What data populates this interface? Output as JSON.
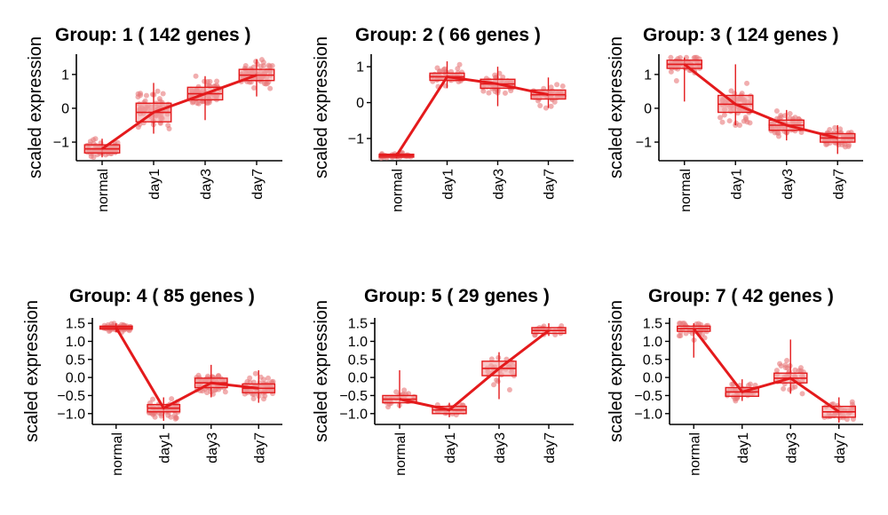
{
  "chart_data": [
    {
      "type": "box",
      "title": "Group: 1 ( 142  genes )",
      "ylabel": "scaled expression",
      "categories": [
        "normal",
        "day1",
        "day3",
        "day7"
      ],
      "ylim": [
        -1.55,
        1.6
      ],
      "yticks": [
        -1,
        0,
        1
      ],
      "ytick_labels": [
        "−1",
        "0",
        "1"
      ],
      "means": [
        -1.2,
        -0.12,
        0.43,
        0.98
      ],
      "boxes": [
        {
          "q1": -1.32,
          "median": -1.2,
          "q3": -1.08,
          "lo": -1.45,
          "hi": -0.9
        },
        {
          "q1": -0.4,
          "median": -0.12,
          "q3": 0.15,
          "lo": -0.75,
          "hi": 0.75
        },
        {
          "q1": 0.25,
          "median": 0.43,
          "q3": 0.62,
          "lo": -0.35,
          "hi": 0.95
        },
        {
          "q1": 0.82,
          "median": 0.98,
          "q3": 1.15,
          "lo": 0.35,
          "hi": 1.45
        }
      ],
      "jitter_spread": [
        0.12,
        0.3,
        0.2,
        0.16
      ],
      "points_per_category": 70
    },
    {
      "type": "box",
      "title": "Group: 2 ( 66  genes )",
      "ylabel": "scaled expression",
      "categories": [
        "normal",
        "day1",
        "day3",
        "day7"
      ],
      "ylim": [
        -1.62,
        1.35
      ],
      "yticks": [
        -1,
        0,
        1
      ],
      "ytick_labels": [
        "−1",
        "0",
        "1"
      ],
      "means": [
        -1.48,
        0.72,
        0.52,
        0.22
      ],
      "boxes": [
        {
          "q1": -1.52,
          "median": -1.48,
          "q3": -1.44,
          "lo": -1.55,
          "hi": -1.4
        },
        {
          "q1": 0.62,
          "median": 0.72,
          "q3": 0.82,
          "lo": 0.4,
          "hi": 1.15
        },
        {
          "q1": 0.4,
          "median": 0.52,
          "q3": 0.65,
          "lo": -0.1,
          "hi": 1.0
        },
        {
          "q1": 0.1,
          "median": 0.22,
          "q3": 0.35,
          "lo": -0.15,
          "hi": 0.7
        }
      ],
      "jitter_spread": [
        0.03,
        0.12,
        0.15,
        0.14
      ],
      "points_per_category": 45
    },
    {
      "type": "box",
      "title": "Group: 3 ( 124  genes )",
      "ylabel": "scaled expression",
      "categories": [
        "normal",
        "day1",
        "day3",
        "day7"
      ],
      "ylim": [
        -1.55,
        1.6
      ],
      "yticks": [
        -1,
        0,
        1
      ],
      "ytick_labels": [
        "−1",
        "0",
        "1"
      ],
      "means": [
        1.3,
        0.12,
        -0.5,
        -0.88
      ],
      "boxes": [
        {
          "q1": 1.18,
          "median": 1.3,
          "q3": 1.42,
          "lo": 0.2,
          "hi": 1.5
        },
        {
          "q1": -0.12,
          "median": 0.12,
          "q3": 0.38,
          "lo": -0.5,
          "hi": 1.3
        },
        {
          "q1": -0.65,
          "median": -0.5,
          "q3": -0.35,
          "lo": -0.95,
          "hi": -0.05
        },
        {
          "q1": -1.0,
          "median": -0.88,
          "q3": -0.75,
          "lo": -1.35,
          "hi": -0.5
        }
      ],
      "jitter_spread": [
        0.12,
        0.3,
        0.17,
        0.14
      ],
      "points_per_category": 65
    },
    {
      "type": "box",
      "title": "Group: 4 ( 85  genes )",
      "ylabel": "scaled expression",
      "categories": [
        "normal",
        "day1",
        "day3",
        "day7"
      ],
      "ylim": [
        -1.3,
        1.65
      ],
      "yticks": [
        -1.0,
        -0.5,
        0.0,
        0.5,
        1.0,
        1.5
      ],
      "ytick_labels": [
        "−1.0",
        "−0.5",
        "0.0",
        "0.5",
        "1.0",
        "1.5"
      ],
      "means": [
        1.38,
        -0.85,
        -0.15,
        -0.3
      ],
      "boxes": [
        {
          "q1": 1.34,
          "median": 1.38,
          "q3": 1.42,
          "lo": 1.25,
          "hi": 1.5
        },
        {
          "q1": -0.95,
          "median": -0.85,
          "q3": -0.75,
          "lo": -1.2,
          "hi": -0.55
        },
        {
          "q1": -0.28,
          "median": -0.15,
          "q3": -0.02,
          "lo": -0.55,
          "hi": 0.35
        },
        {
          "q1": -0.42,
          "median": -0.3,
          "q3": -0.18,
          "lo": -0.7,
          "hi": 0.2
        }
      ],
      "jitter_spread": [
        0.05,
        0.12,
        0.14,
        0.14
      ],
      "points_per_category": 55
    },
    {
      "type": "box",
      "title": "Group: 5 ( 29  genes )",
      "ylabel": "scaled expression",
      "categories": [
        "normal",
        "day1",
        "day3",
        "day7"
      ],
      "ylim": [
        -1.3,
        1.65
      ],
      "yticks": [
        -1.0,
        -0.5,
        0.0,
        0.5,
        1.0,
        1.5
      ],
      "ytick_labels": [
        "−1.0",
        "−0.5",
        "0.0",
        "0.5",
        "1.0",
        "1.5"
      ],
      "means": [
        -0.6,
        -0.9,
        0.25,
        1.3
      ],
      "boxes": [
        {
          "q1": -0.7,
          "median": -0.6,
          "q3": -0.5,
          "lo": -0.85,
          "hi": 0.2
        },
        {
          "q1": -1.0,
          "median": -0.9,
          "q3": -0.8,
          "lo": -1.1,
          "hi": -0.7
        },
        {
          "q1": 0.05,
          "median": 0.25,
          "q3": 0.45,
          "lo": -0.6,
          "hi": 0.7
        },
        {
          "q1": 1.22,
          "median": 1.3,
          "q3": 1.38,
          "lo": 1.15,
          "hi": 1.5
        }
      ],
      "jitter_spread": [
        0.1,
        0.08,
        0.25,
        0.06
      ],
      "points_per_category": 25
    },
    {
      "type": "box",
      "title": "Group: 7 ( 42  genes )",
      "ylabel": "scaled expression",
      "categories": [
        "normal",
        "day1",
        "day3",
        "day7"
      ],
      "ylim": [
        -1.3,
        1.65
      ],
      "yticks": [
        -1.0,
        -0.5,
        0.0,
        0.5,
        1.0,
        1.5
      ],
      "ytick_labels": [
        "−1.0",
        "−0.5",
        "0.0",
        "0.5",
        "1.0",
        "1.5"
      ],
      "means": [
        1.35,
        -0.4,
        -0.02,
        -0.95
      ],
      "boxes": [
        {
          "q1": 1.28,
          "median": 1.35,
          "q3": 1.42,
          "lo": 0.55,
          "hi": 1.5
        },
        {
          "q1": -0.52,
          "median": -0.4,
          "q3": -0.28,
          "lo": -0.65,
          "hi": -0.05
        },
        {
          "q1": -0.15,
          "median": -0.02,
          "q3": 0.12,
          "lo": -0.45,
          "hi": 1.05
        },
        {
          "q1": -1.1,
          "median": -0.95,
          "q3": -0.8,
          "lo": -1.25,
          "hi": -0.55
        }
      ],
      "jitter_spread": [
        0.12,
        0.12,
        0.22,
        0.14
      ],
      "points_per_category": 35
    }
  ],
  "colors": {
    "line": "#e41a1c",
    "box_fill": "#f4a6a6",
    "box_stroke": "#e41a1c",
    "point": "#e8787a"
  }
}
